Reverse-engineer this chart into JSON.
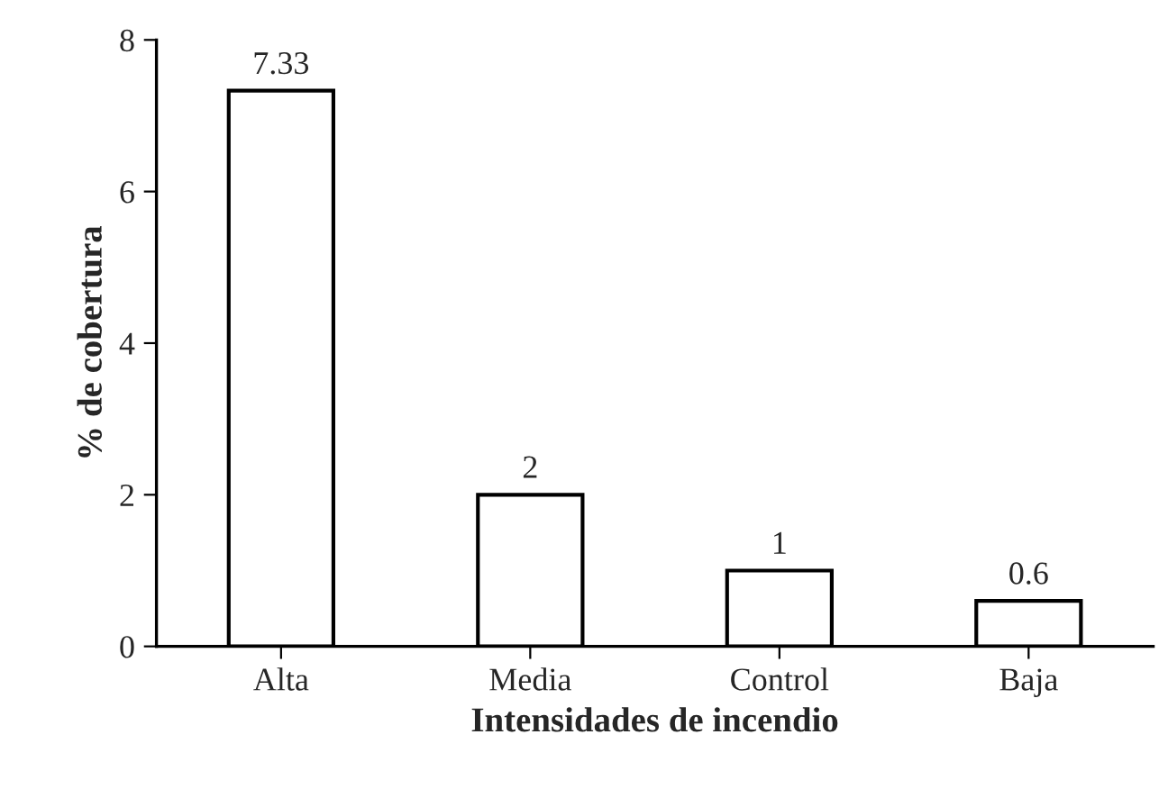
{
  "chart_data": {
    "type": "bar",
    "xlabel": "Intensidades de incendio",
    "ylabel": "% de cobertura",
    "categories": [
      "Alta",
      "Media",
      "Control",
      "Baja"
    ],
    "values": [
      7.33,
      2,
      1,
      0.6
    ],
    "color": "#ffffff",
    "ylim": [
      0,
      8
    ],
    "yticks": [
      0,
      2,
      4,
      6,
      8
    ],
    "grid": false,
    "data_labels": true
  }
}
